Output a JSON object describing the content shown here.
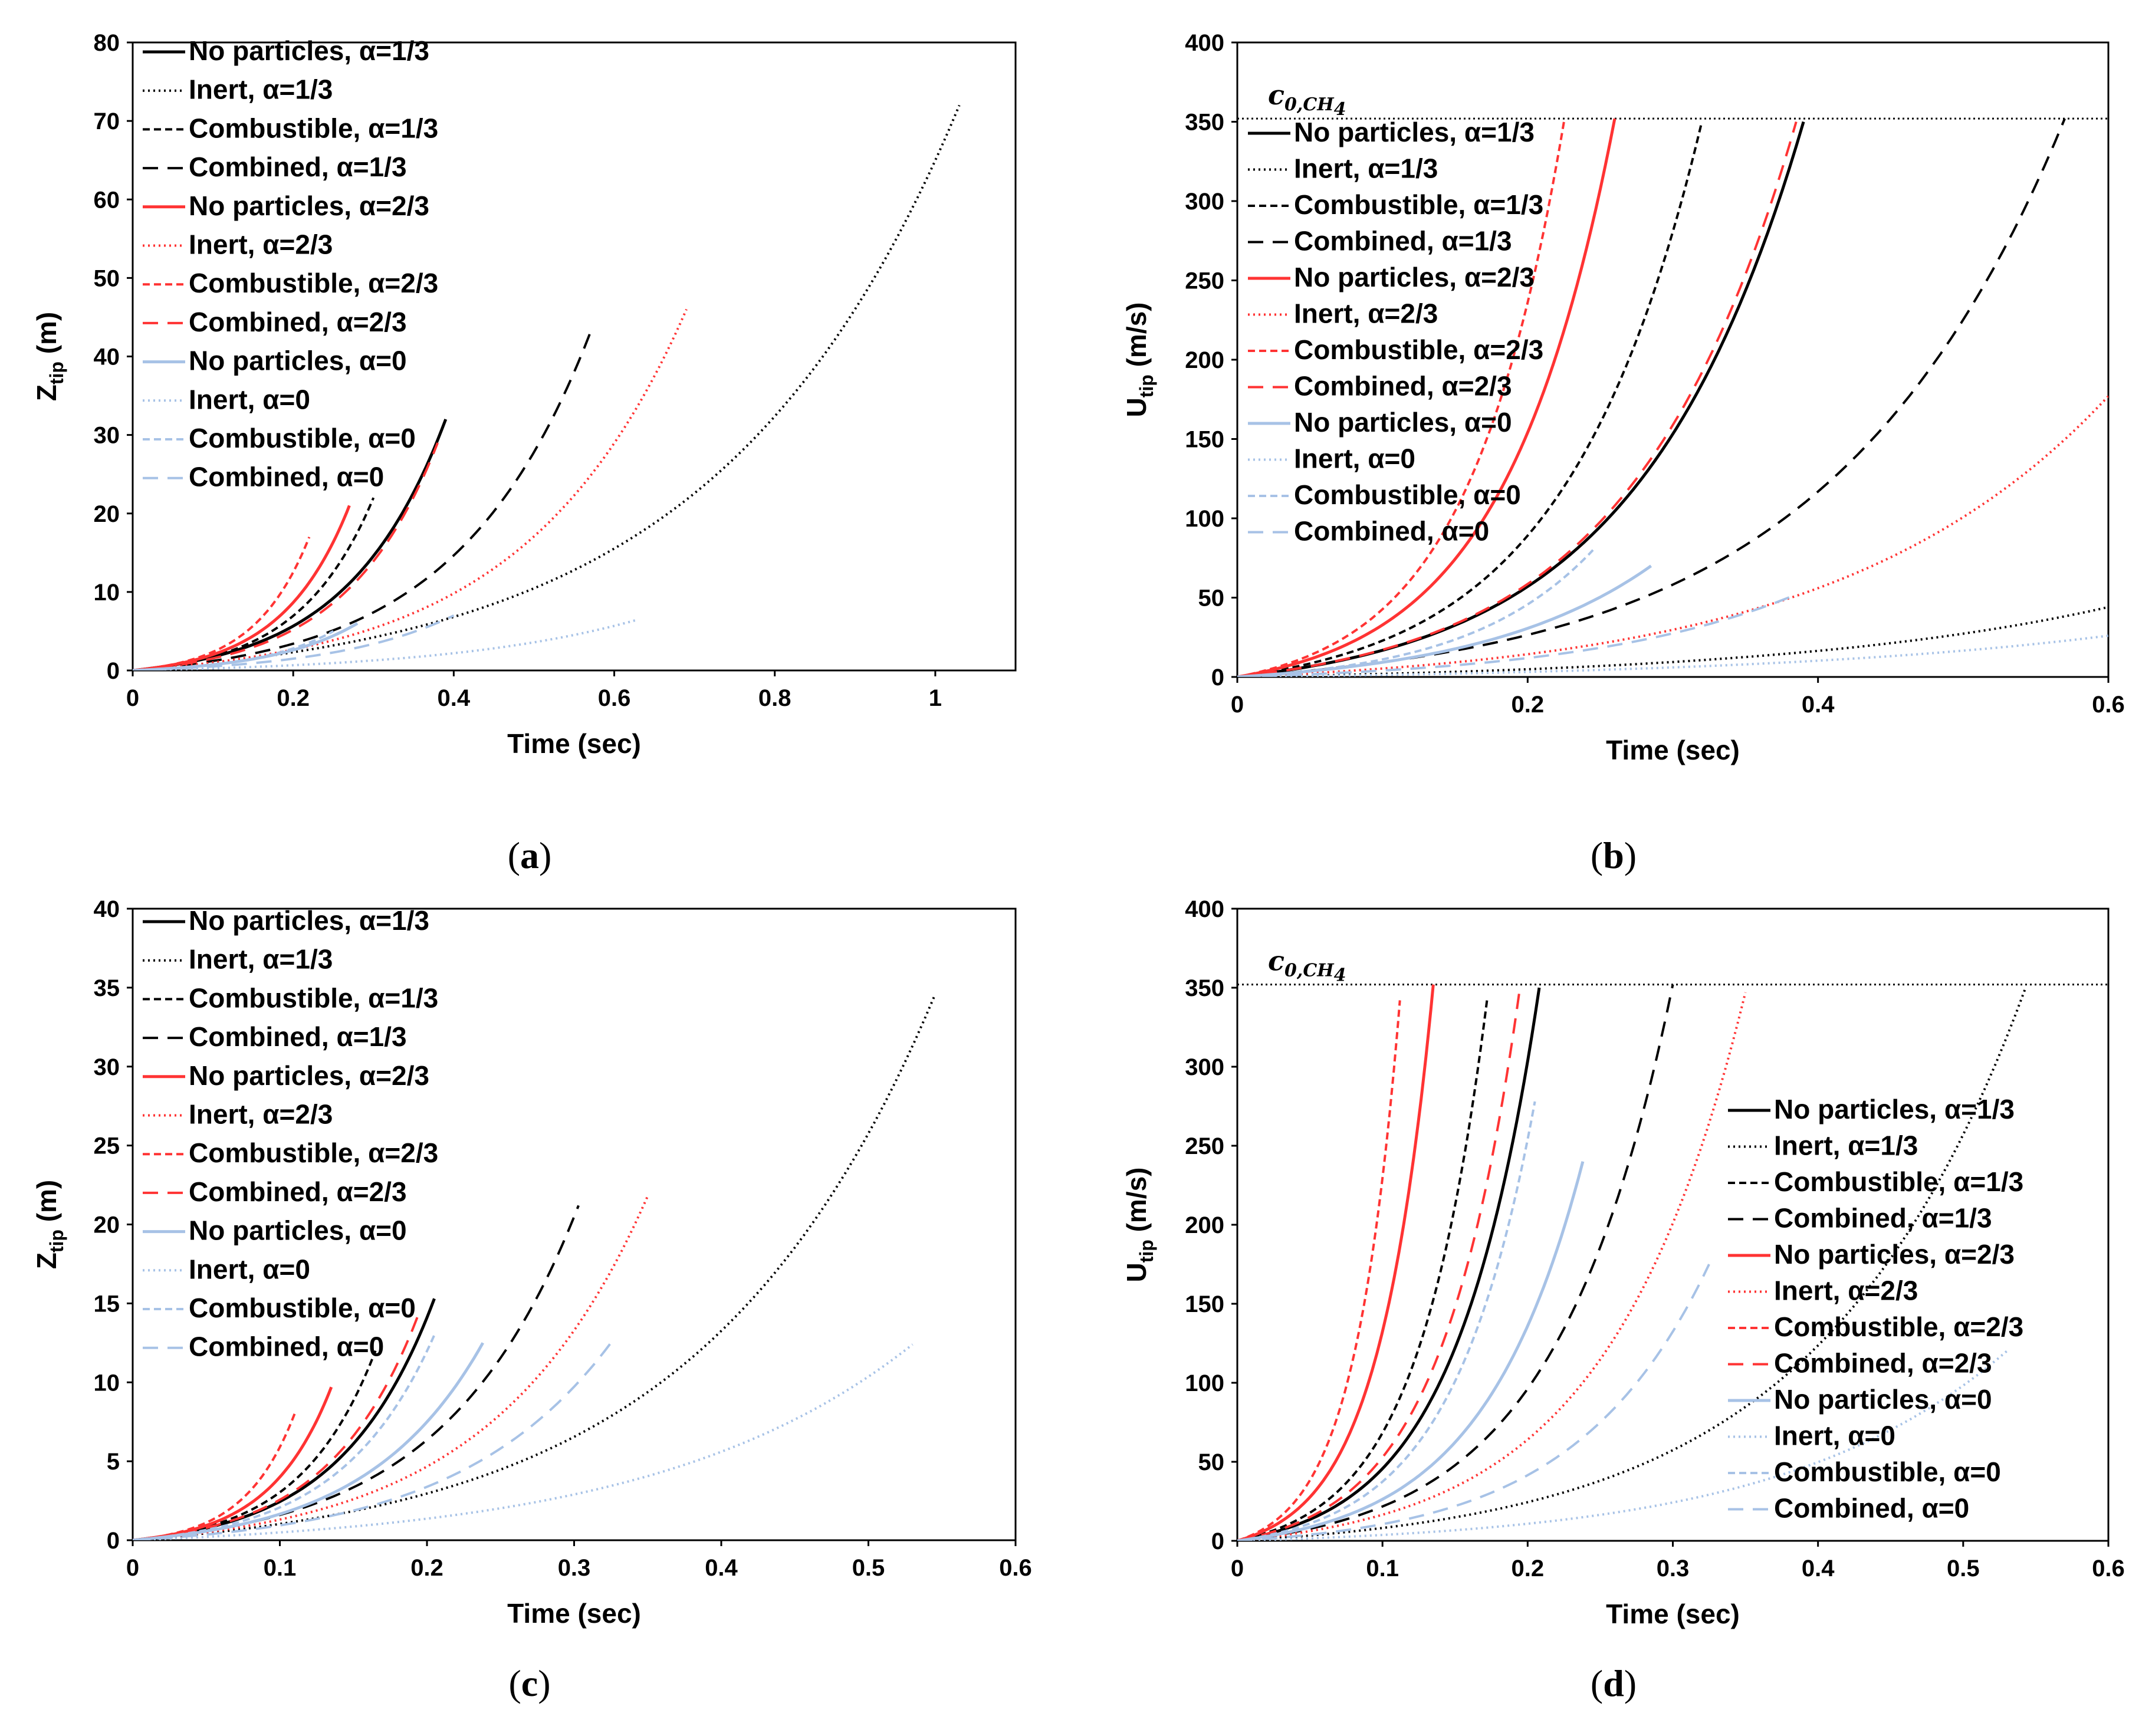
{
  "styles": {
    "no_particles": {
      "dash": "",
      "width": 5
    },
    "inert": {
      "dash": "3 6",
      "width": 4
    },
    "combustible": {
      "dash": "12 7",
      "width": 4
    },
    "combined": {
      "dash": "26 16",
      "width": 4
    }
  },
  "colors": {
    "a13": "#000000",
    "a23": "#ff3333",
    "a0": "#a7c2e6"
  },
  "chart_data": [
    {
      "type": "line",
      "panel": "a",
      "caption": "(a)",
      "caption_letter": "a",
      "xlabel": "Time (sec)",
      "ylabel_main": "Z",
      "ylabel_sub": "tip",
      "ylabel_unit": " (m)",
      "xlim": [
        0,
        1.1
      ],
      "ylim": [
        0,
        80
      ],
      "xticks": [
        0,
        0.2,
        0.4,
        0.6,
        0.8,
        1
      ],
      "xtick_labels": [
        "0",
        "0.2",
        "0.4",
        "0.6",
        "0.8",
        "1"
      ],
      "yticks": [
        0,
        10,
        20,
        30,
        40,
        50,
        60,
        70,
        80
      ],
      "ytick_labels": [
        "0",
        "10",
        "20",
        "30",
        "40",
        "50",
        "60",
        "70",
        "80"
      ],
      "legend_position": "top-left",
      "reference": null,
      "series": [
        {
          "name": "No particles, α=1/3",
          "style": "no_particles",
          "color": "a13",
          "t_end": 0.39,
          "y_end": 32,
          "shape": 3.2
        },
        {
          "name": "Inert, α=1/3",
          "style": "inert",
          "color": "a13",
          "t_end": 1.03,
          "y_end": 72,
          "shape": 3.4
        },
        {
          "name": "Combustible, α=1/3",
          "style": "combustible",
          "color": "a13",
          "t_end": 0.3,
          "y_end": 22,
          "shape": 3.2
        },
        {
          "name": "Combined, α=1/3",
          "style": "combined",
          "color": "a13",
          "t_end": 0.57,
          "y_end": 43,
          "shape": 3.4
        },
        {
          "name": "No particles, α=2/3",
          "style": "no_particles",
          "color": "a23",
          "t_end": 0.27,
          "y_end": 21,
          "shape": 3.2
        },
        {
          "name": "Inert, α=2/3",
          "style": "inert",
          "color": "a23",
          "t_end": 0.69,
          "y_end": 46,
          "shape": 3.4
        },
        {
          "name": "Combustible, α=2/3",
          "style": "combustible",
          "color": "a23",
          "t_end": 0.22,
          "y_end": 17,
          "shape": 3.2
        },
        {
          "name": "Combined, α=2/3",
          "style": "combined",
          "color": "a23",
          "t_end": 0.38,
          "y_end": 29,
          "shape": 3.3
        },
        {
          "name": "No particles, α=0",
          "style": "no_particles",
          "color": "a0",
          "t_end": 0.28,
          "y_end": 6,
          "shape": 2.6
        },
        {
          "name": "Inert, α=0",
          "style": "inert",
          "color": "a0",
          "t_end": 0.63,
          "y_end": 6.5,
          "shape": 2.6
        },
        {
          "name": "Combustible, α=0",
          "style": "combustible",
          "color": "a0",
          "t_end": 0.25,
          "y_end": 5,
          "shape": 2.6
        },
        {
          "name": "Combined, α=0",
          "style": "combined",
          "color": "a0",
          "t_end": 0.4,
          "y_end": 7,
          "shape": 2.6
        }
      ]
    },
    {
      "type": "line",
      "panel": "b",
      "caption": "(b)",
      "caption_letter": "b",
      "xlabel": "Time (sec)",
      "ylabel_main": "U",
      "ylabel_sub": "tip",
      "ylabel_unit": " (m/s)",
      "xlim": [
        0,
        0.6
      ],
      "ylim": [
        0,
        400
      ],
      "xticks": [
        0,
        0.2,
        0.4,
        0.6
      ],
      "xtick_labels": [
        "0",
        "0.2",
        "0.4",
        "0.6"
      ],
      "yticks": [
        0,
        50,
        100,
        150,
        200,
        250,
        300,
        350,
        400
      ],
      "ytick_labels": [
        "0",
        "50",
        "100",
        "150",
        "200",
        "250",
        "300",
        "350",
        "400"
      ],
      "legend_position": "upper-left",
      "reference": {
        "label": "c",
        "sub": "0,CH",
        "sub2": "4",
        "value": 352
      },
      "series": [
        {
          "name": "No particles, α=1/3",
          "style": "no_particles",
          "color": "a13",
          "t_end": 0.39,
          "y_end": 350,
          "shape": 3.4
        },
        {
          "name": "Inert, α=1/3",
          "style": "inert",
          "color": "a13",
          "t_end": 0.6,
          "y_end": 44,
          "shape": 2.6
        },
        {
          "name": "Combustible, α=1/3",
          "style": "combustible",
          "color": "a13",
          "t_end": 0.32,
          "y_end": 350,
          "shape": 3.4
        },
        {
          "name": "Combined, α=1/3",
          "style": "combined",
          "color": "a13",
          "t_end": 0.57,
          "y_end": 352,
          "shape": 3.5
        },
        {
          "name": "No particles, α=2/3",
          "style": "no_particles",
          "color": "a23",
          "t_end": 0.26,
          "y_end": 352,
          "shape": 3.4
        },
        {
          "name": "Inert, α=2/3",
          "style": "inert",
          "color": "a23",
          "t_end": 0.6,
          "y_end": 177,
          "shape": 3.2
        },
        {
          "name": "Combustible, α=2/3",
          "style": "combustible",
          "color": "a23",
          "t_end": 0.225,
          "y_end": 350,
          "shape": 3.4
        },
        {
          "name": "Combined, α=2/3",
          "style": "combined",
          "color": "a23",
          "t_end": 0.385,
          "y_end": 350,
          "shape": 3.4
        },
        {
          "name": "No particles, α=0",
          "style": "no_particles",
          "color": "a0",
          "t_end": 0.285,
          "y_end": 70,
          "shape": 2.4
        },
        {
          "name": "Inert, α=0",
          "style": "inert",
          "color": "a0",
          "t_end": 0.6,
          "y_end": 26,
          "shape": 2.4
        },
        {
          "name": "Combustible, α=0",
          "style": "combustible",
          "color": "a0",
          "t_end": 0.245,
          "y_end": 80,
          "shape": 2.8
        },
        {
          "name": "Combined, α=0",
          "style": "combined",
          "color": "a0",
          "t_end": 0.385,
          "y_end": 52,
          "shape": 2.6
        }
      ]
    },
    {
      "type": "line",
      "panel": "c",
      "caption": "(c)",
      "caption_letter": "c",
      "xlabel": "Time (sec)",
      "ylabel_main": "Z",
      "ylabel_sub": "tip",
      "ylabel_unit": " (m)",
      "xlim": [
        0,
        0.6
      ],
      "ylim": [
        0,
        40
      ],
      "xticks": [
        0,
        0.1,
        0.2,
        0.3,
        0.4,
        0.5,
        0.6
      ],
      "xtick_labels": [
        "0",
        "0.1",
        "0.2",
        "0.3",
        "0.4",
        "0.5",
        "0.6"
      ],
      "yticks": [
        0,
        5,
        10,
        15,
        20,
        25,
        30,
        35,
        40
      ],
      "ytick_labels": [
        "0",
        "5",
        "10",
        "15",
        "20",
        "25",
        "30",
        "35",
        "40"
      ],
      "legend_position": "top-left",
      "reference": null,
      "series": [
        {
          "name": "No particles, α=1/3",
          "style": "no_particles",
          "color": "a13",
          "t_end": 0.205,
          "y_end": 15.3,
          "shape": 3.2
        },
        {
          "name": "Inert, α=1/3",
          "style": "inert",
          "color": "a13",
          "t_end": 0.545,
          "y_end": 34.5,
          "shape": 3.4
        },
        {
          "name": "Combustible, α=1/3",
          "style": "combustible",
          "color": "a13",
          "t_end": 0.165,
          "y_end": 12,
          "shape": 3.2
        },
        {
          "name": "Combined, α=1/3",
          "style": "combined",
          "color": "a13",
          "t_end": 0.303,
          "y_end": 21.2,
          "shape": 3.3
        },
        {
          "name": "No particles, α=2/3",
          "style": "no_particles",
          "color": "a23",
          "t_end": 0.135,
          "y_end": 9.7,
          "shape": 3.2
        },
        {
          "name": "Inert, α=2/3",
          "style": "inert",
          "color": "a23",
          "t_end": 0.35,
          "y_end": 21.8,
          "shape": 3.3
        },
        {
          "name": "Combustible, α=2/3",
          "style": "combustible",
          "color": "a23",
          "t_end": 0.11,
          "y_end": 8.0,
          "shape": 3.2
        },
        {
          "name": "Combined, α=2/3",
          "style": "combined",
          "color": "a23",
          "t_end": 0.195,
          "y_end": 14.5,
          "shape": 3.2
        },
        {
          "name": "No particles, α=0",
          "style": "no_particles",
          "color": "a0",
          "t_end": 0.238,
          "y_end": 12.5,
          "shape": 3.0
        },
        {
          "name": "Inert, α=0",
          "style": "inert",
          "color": "a0",
          "t_end": 0.53,
          "y_end": 12.4,
          "shape": 3.0
        },
        {
          "name": "Combustible, α=0",
          "style": "combustible",
          "color": "a0",
          "t_end": 0.205,
          "y_end": 13,
          "shape": 3.2
        },
        {
          "name": "Combined, α=0",
          "style": "combined",
          "color": "a0",
          "t_end": 0.325,
          "y_end": 12.5,
          "shape": 3.1
        }
      ]
    },
    {
      "type": "line",
      "panel": "d",
      "caption": "(d)",
      "caption_letter": "d",
      "xlabel": "Time (sec)",
      "ylabel_main": "U",
      "ylabel_sub": "tip",
      "ylabel_unit": " (m/s)",
      "xlim": [
        0,
        0.6
      ],
      "ylim": [
        0,
        400
      ],
      "xticks": [
        0,
        0.1,
        0.2,
        0.3,
        0.4,
        0.5,
        0.6
      ],
      "xtick_labels": [
        "0",
        "0.1",
        "0.2",
        "0.3",
        "0.4",
        "0.5",
        "0.6"
      ],
      "yticks": [
        0,
        50,
        100,
        150,
        200,
        250,
        300,
        350,
        400
      ],
      "ytick_labels": [
        "0",
        "50",
        "100",
        "150",
        "200",
        "250",
        "300",
        "350",
        "400"
      ],
      "legend_position": "lower-right",
      "reference": {
        "label": "c",
        "sub": "0,CH",
        "sub2": "4",
        "value": 352
      },
      "series": [
        {
          "name": "No particles, α=1/3",
          "style": "no_particles",
          "color": "a13",
          "t_end": 0.208,
          "y_end": 350,
          "shape": 3.6
        },
        {
          "name": "Inert, α=1/3",
          "style": "inert",
          "color": "a13",
          "t_end": 0.543,
          "y_end": 350,
          "shape": 3.8
        },
        {
          "name": "Combustible, α=1/3",
          "style": "combustible",
          "color": "a13",
          "t_end": 0.172,
          "y_end": 342,
          "shape": 3.6
        },
        {
          "name": "Combined, α=1/3",
          "style": "combined",
          "color": "a13",
          "t_end": 0.3,
          "y_end": 352,
          "shape": 3.7
        },
        {
          "name": "No particles, α=2/3",
          "style": "no_particles",
          "color": "a23",
          "t_end": 0.135,
          "y_end": 352,
          "shape": 3.6
        },
        {
          "name": "Inert, α=2/3",
          "style": "inert",
          "color": "a23",
          "t_end": 0.35,
          "y_end": 347,
          "shape": 3.7
        },
        {
          "name": "Combustible, α=2/3",
          "style": "combustible",
          "color": "a23",
          "t_end": 0.112,
          "y_end": 342,
          "shape": 3.6
        },
        {
          "name": "Combined, α=2/3",
          "style": "combined",
          "color": "a23",
          "t_end": 0.195,
          "y_end": 352,
          "shape": 3.6
        },
        {
          "name": "No particles, α=0",
          "style": "no_particles",
          "color": "a0",
          "t_end": 0.238,
          "y_end": 240,
          "shape": 3.4
        },
        {
          "name": "Inert, α=0",
          "style": "inert",
          "color": "a0",
          "t_end": 0.53,
          "y_end": 120,
          "shape": 3.4
        },
        {
          "name": "Combustible, α=0",
          "style": "combustible",
          "color": "a0",
          "t_end": 0.205,
          "y_end": 278,
          "shape": 3.6
        },
        {
          "name": "Combined, α=0",
          "style": "combined",
          "color": "a0",
          "t_end": 0.325,
          "y_end": 175,
          "shape": 3.5
        }
      ]
    }
  ]
}
